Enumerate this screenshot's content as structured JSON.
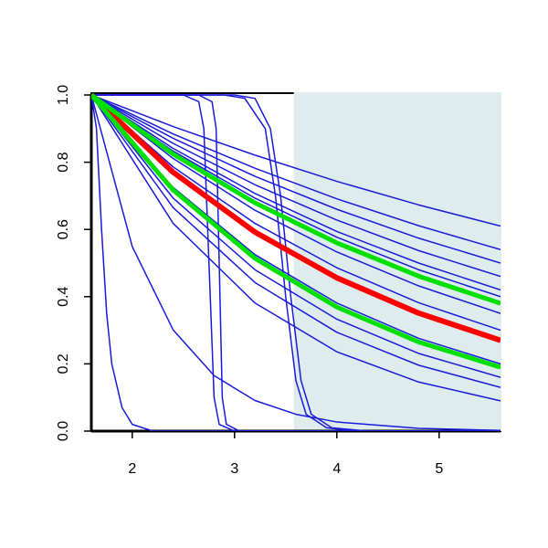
{
  "chart_data": {
    "type": "line",
    "xlim": [
      1.6,
      5.6
    ],
    "xticks": [
      2,
      3,
      4,
      5
    ],
    "ylim": [
      0,
      1
    ],
    "yticks": [
      {
        "value": 0,
        "label": "0.0"
      },
      0.2,
      0.4,
      0.6,
      0.8,
      {
        "value": 1,
        "label": "1.0"
      }
    ],
    "shaded_region": {
      "x": [
        3.58,
        5.6
      ],
      "color": "#dfeced"
    },
    "series": [
      {
        "color": "#1a1adb",
        "width": 1.5,
        "x": [
          1.6,
          2.4,
          3.2,
          4.0,
          4.8,
          5.6
        ],
        "values": [
          1,
          0.906,
          0.821,
          0.743,
          0.673,
          0.61
        ]
      },
      {
        "color": "#1a1adb",
        "width": 1.5,
        "x": [
          1.6,
          2.4,
          3.2,
          4.0,
          4.8,
          5.6
        ],
        "values": [
          1,
          0.884,
          0.782,
          0.691,
          0.611,
          0.54
        ]
      },
      {
        "color": "#1a1adb",
        "width": 1.5,
        "x": [
          1.6,
          2.4,
          3.2,
          4.0,
          4.8,
          5.6
        ],
        "values": [
          1,
          0.871,
          0.758,
          0.66,
          0.574,
          0.5
        ]
      },
      {
        "color": "#1a1adb",
        "width": 1.5,
        "x": [
          1.6,
          2.4,
          3.2,
          4.0,
          4.8,
          5.6
        ],
        "values": [
          1,
          0.856,
          0.733,
          0.628,
          0.537,
          0.46
        ]
      },
      {
        "color": "#1a1adb",
        "width": 1.5,
        "x": [
          1.6,
          2.4,
          3.2,
          4.0,
          4.8,
          5.6
        ],
        "values": [
          1,
          0.841,
          0.707,
          0.594,
          0.5,
          0.42
        ]
      },
      {
        "color": "#1a1adb",
        "width": 1.5,
        "x": [
          1.6,
          2.4,
          3.2,
          4.0,
          4.8,
          5.6
        ],
        "values": [
          1,
          0.833,
          0.693,
          0.577,
          0.48,
          0.4
        ]
      },
      {
        "color": "#1a1adb",
        "width": 1.5,
        "x": [
          1.6,
          2.4,
          3.2,
          4.0,
          4.8,
          5.6
        ],
        "values": [
          1,
          0.811,
          0.657,
          0.533,
          0.432,
          0.35
        ]
      },
      {
        "color": "#1a1adb",
        "width": 1.5,
        "x": [
          1.6,
          2.4,
          3.2,
          4.0,
          4.8,
          5.6
        ],
        "values": [
          1,
          0.786,
          0.618,
          0.486,
          0.382,
          0.3
        ]
      },
      {
        "color": "#1a1adb",
        "width": 1.5,
        "x": [
          1.6,
          2.4,
          3.2,
          4.0,
          4.8,
          5.6
        ],
        "values": [
          1,
          0.725,
          0.525,
          0.381,
          0.276,
          0.2
        ]
      },
      {
        "color": "#1a1adb",
        "width": 1.5,
        "x": [
          1.6,
          2.4,
          3.2,
          4.0,
          4.8,
          5.6
        ],
        "values": [
          1,
          0.693,
          0.48,
          0.333,
          0.231,
          0.16
        ]
      },
      {
        "color": "#1a1adb",
        "width": 1.5,
        "x": [
          1.6,
          2.4,
          3.2,
          4.0,
          4.8,
          5.6
        ],
        "values": [
          1,
          0.665,
          0.442,
          0.294,
          0.196,
          0.13
        ]
      },
      {
        "color": "#1a1adb",
        "width": 1.5,
        "x": [
          1.6,
          2.4,
          3.2,
          4.0,
          4.8,
          5.6
        ],
        "values": [
          1,
          0.618,
          0.381,
          0.236,
          0.146,
          0.09
        ]
      },
      {
        "color": "#1a1adb",
        "width": 1.5,
        "x": [
          1.6,
          2.5,
          2.65,
          2.7,
          2.75,
          2.8,
          2.85,
          3.0,
          5.6
        ],
        "values": [
          1,
          1,
          0.98,
          0.9,
          0.5,
          0.1,
          0.02,
          0,
          0
        ]
      },
      {
        "color": "#1a1adb",
        "width": 1.5,
        "x": [
          1.6,
          2.65,
          2.78,
          2.82,
          2.85,
          2.88,
          2.92,
          3.05,
          5.6
        ],
        "values": [
          1,
          1,
          0.98,
          0.9,
          0.5,
          0.1,
          0.02,
          0,
          0
        ]
      },
      {
        "color": "#1a1adb",
        "width": 1.5,
        "x": [
          1.6,
          2.9,
          3.1,
          3.3,
          3.4,
          3.5,
          3.6,
          3.7,
          3.9,
          4.2,
          5.6
        ],
        "values": [
          1,
          1,
          0.99,
          0.9,
          0.7,
          0.4,
          0.15,
          0.05,
          0.01,
          0,
          0
        ]
      },
      {
        "color": "#1a1adb",
        "width": 1.5,
        "x": [
          1.6,
          3.0,
          3.2,
          3.35,
          3.45,
          3.55,
          3.65,
          3.75,
          3.95,
          4.3,
          5.6
        ],
        "values": [
          1,
          1,
          0.99,
          0.9,
          0.7,
          0.4,
          0.15,
          0.05,
          0.01,
          0,
          0
        ]
      },
      {
        "color": "#1a1adb",
        "width": 1.5,
        "x": [
          1.6,
          1.65,
          1.7,
          1.75,
          1.8,
          1.9,
          2.0,
          2.2,
          5.6
        ],
        "values": [
          1,
          0.9,
          0.6,
          0.35,
          0.2,
          0.07,
          0.02,
          0,
          0
        ]
      },
      {
        "color": "#1a1adb",
        "width": 1.5,
        "x": [
          1.6,
          2.0,
          2.4,
          2.8,
          3.2,
          3.6,
          4.0,
          4.8,
          5.6
        ],
        "values": [
          1,
          0.549,
          0.301,
          0.165,
          0.091,
          0.05,
          0.027,
          0.008,
          0.002
        ]
      },
      {
        "color": "#ff0000",
        "width": 6,
        "x": [
          1.6,
          2.4,
          3.2,
          4.0,
          4.8,
          5.6
        ],
        "values": [
          1,
          0.77,
          0.592,
          0.456,
          0.351,
          0.27
        ]
      },
      {
        "color": "#00e000",
        "width": 5,
        "x": [
          1.6,
          2.4,
          3.2,
          4.0,
          4.8,
          5.6
        ],
        "values": [
          1,
          0.824,
          0.679,
          0.56,
          0.461,
          0.38
        ]
      },
      {
        "color": "#00e000",
        "width": 5,
        "x": [
          1.6,
          2.4,
          3.2,
          4.0,
          4.8,
          5.6
        ],
        "values": [
          1,
          0.717,
          0.514,
          0.369,
          0.265,
          0.19
        ]
      }
    ]
  }
}
